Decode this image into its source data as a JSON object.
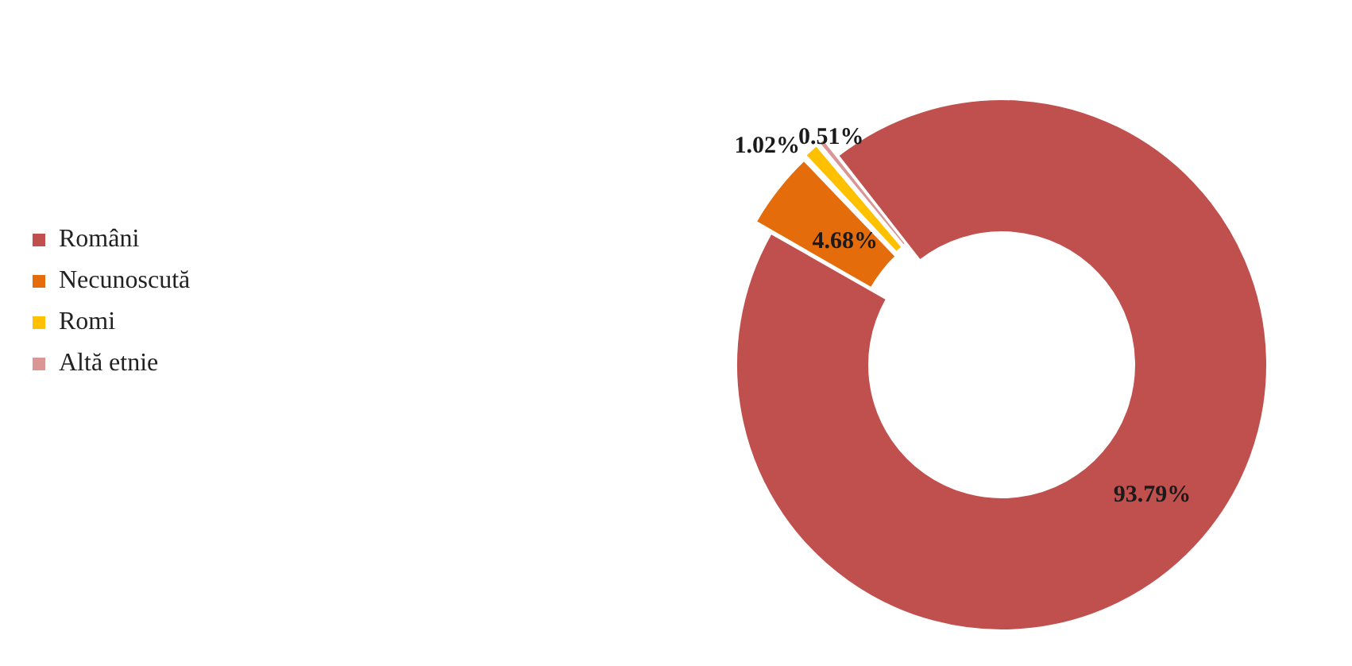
{
  "chart_data": {
    "type": "donut",
    "categories": [
      "Români",
      "Necunoscută",
      "Romi",
      "Altă etnie"
    ],
    "values": [
      93.79,
      4.68,
      1.02,
      0.51
    ],
    "value_labels": [
      "93.79%",
      "4.68%",
      "1.02%",
      "0.51%"
    ],
    "colors": [
      "#c0504d",
      "#e46c0a",
      "#ffc000",
      "#d99694"
    ],
    "legend": "left"
  }
}
